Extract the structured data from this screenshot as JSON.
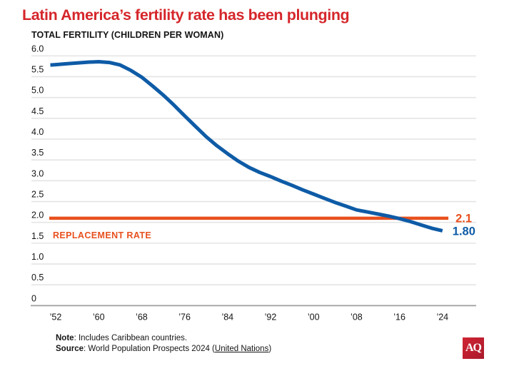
{
  "header": {
    "title": "Latin America’s fertility rate has been plunging",
    "subtitle": "TOTAL FERTILITY (CHILDREN PER WOMAN)"
  },
  "chart_data": {
    "type": "line",
    "title": "Latin America’s fertility rate has been plunging",
    "xlabel": "",
    "ylabel": "TOTAL FERTILITY (CHILDREN PER WOMAN)",
    "ylim": [
      0,
      6.0
    ],
    "xlim": [
      1950.8,
      2025.1
    ],
    "grid": "horizontal",
    "y_ticks": [
      {
        "label": "6.0",
        "value": 6.0
      },
      {
        "label": "5.5",
        "value": 5.5
      },
      {
        "label": "5.0",
        "value": 5.0
      },
      {
        "label": "4.5",
        "value": 4.5
      },
      {
        "label": "4.0",
        "value": 4.0
      },
      {
        "label": "3.5",
        "value": 3.5
      },
      {
        "label": "3.0",
        "value": 3.0
      },
      {
        "label": "2.5",
        "value": 2.5
      },
      {
        "label": "2.0",
        "value": 2.0
      },
      {
        "label": "1.5",
        "value": 1.5
      },
      {
        "label": "1.0",
        "value": 1.0
      },
      {
        "label": "0.5",
        "value": 0.5
      },
      {
        "label": "0",
        "value": 0.0
      }
    ],
    "x_ticks": [
      {
        "label": "’52",
        "year": 1952
      },
      {
        "label": "’60",
        "year": 1960
      },
      {
        "label": "’68",
        "year": 1968
      },
      {
        "label": "’76",
        "year": 1976
      },
      {
        "label": "’84",
        "year": 1984
      },
      {
        "label": "’92",
        "year": 1992
      },
      {
        "label": "’00",
        "year": 2000
      },
      {
        "label": "’08",
        "year": 2008
      },
      {
        "label": "’16",
        "year": 2016
      },
      {
        "label": "’24",
        "year": 2024
      }
    ],
    "series": [
      {
        "name": "Total fertility (children per woman)",
        "color": "#0e5ba6",
        "end_label": "1.80",
        "x": [
          1951,
          1952,
          1954,
          1956,
          1958,
          1960,
          1962,
          1964,
          1966,
          1968,
          1970,
          1972,
          1974,
          1976,
          1978,
          1980,
          1982,
          1984,
          1986,
          1988,
          1990,
          1992,
          1994,
          1996,
          1998,
          2000,
          2002,
          2004,
          2006,
          2008,
          2010,
          2012,
          2014,
          2016,
          2018,
          2020,
          2022,
          2024
        ],
        "values": [
          5.78,
          5.79,
          5.81,
          5.83,
          5.85,
          5.86,
          5.84,
          5.78,
          5.65,
          5.49,
          5.28,
          5.06,
          4.82,
          4.56,
          4.31,
          4.06,
          3.84,
          3.65,
          3.47,
          3.32,
          3.2,
          3.1,
          2.99,
          2.89,
          2.78,
          2.68,
          2.58,
          2.48,
          2.39,
          2.3,
          2.25,
          2.2,
          2.15,
          2.09,
          2.02,
          1.94,
          1.86,
          1.8
        ]
      }
    ],
    "reference_line": {
      "label": "REPLACEMENT RATE",
      "value": 2.1,
      "value_label": "2.1",
      "color": "#e8501e",
      "x_start": 1950.8,
      "x_end": 2025.1
    }
  },
  "footer": {
    "note_label": "Note",
    "note_text": ": Includes Caribbean countries.",
    "source_label": "Source",
    "source_prefix": ": World Population Prospects 2024 (",
    "source_link": "United Nations",
    "source_suffix": ")"
  },
  "logo": {
    "text": "AQ"
  },
  "colors": {
    "title": "#d5262b",
    "line": "#0e5ba6",
    "reference": "#e8501e",
    "grid": "#e4e4e4",
    "axis": "#9e9e9e",
    "tick_text": "#141414"
  }
}
